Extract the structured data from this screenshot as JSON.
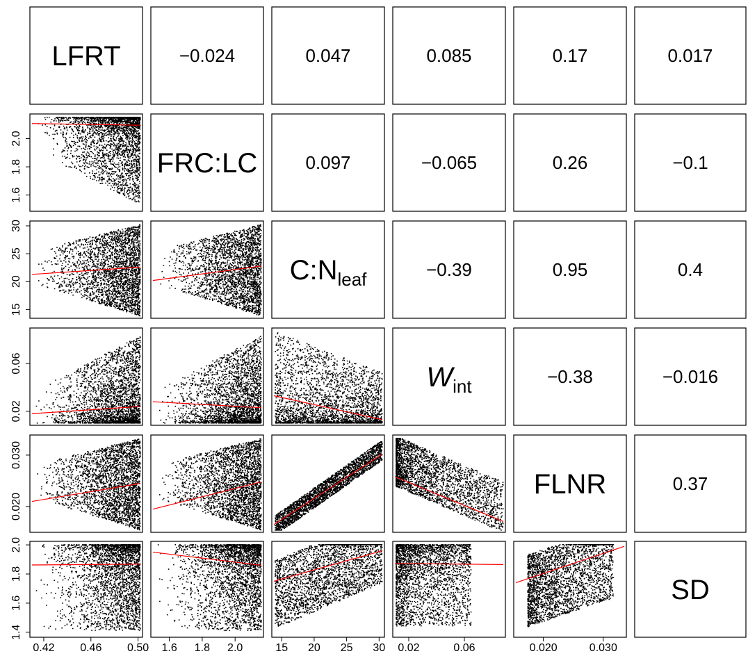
{
  "chart_data": {
    "type": "scatter",
    "variables": [
      {
        "key": "LFRT",
        "label": "LFRT",
        "label_main": "LFRT",
        "label_sub": "",
        "italic": false,
        "range": [
          0.41,
          0.502
        ],
        "ticks": [
          0.42,
          0.46,
          0.5
        ],
        "tick_labels": [
          "0.42",
          "0.46",
          "0.50"
        ]
      },
      {
        "key": "FRC:LC",
        "label": "FRC:LC",
        "label_main": "FRC:LC",
        "label_sub": "",
        "italic": false,
        "range": [
          1.5,
          2.16
        ],
        "ticks": [
          1.6,
          1.8,
          2.0
        ],
        "tick_labels": [
          "1.6",
          "1.8",
          "2.0"
        ]
      },
      {
        "key": "C:Nleaf",
        "label": "C:Nleaf",
        "label_main": "C:N",
        "label_sub": "leaf",
        "italic": false,
        "range": [
          13.8,
          30.5
        ],
        "ticks": [
          15,
          20,
          25,
          30
        ],
        "tick_labels": [
          "15",
          "20",
          "25",
          "30"
        ]
      },
      {
        "key": "Wint",
        "label": "Wint",
        "label_main": "W",
        "label_sub": "int",
        "italic": true,
        "range": [
          0.01,
          0.088
        ],
        "ticks": [
          0.02,
          0.06
        ],
        "tick_labels": [
          "0.02",
          "0.06"
        ]
      },
      {
        "key": "FLNR",
        "label": "FLNR",
        "label_main": "FLNR",
        "label_sub": "",
        "italic": false,
        "range": [
          0.0154,
          0.0335
        ],
        "ticks": [
          0.02,
          0.03
        ],
        "tick_labels": [
          "0.020",
          "0.030"
        ]
      },
      {
        "key": "SD",
        "label": "SD",
        "label_main": "SD",
        "label_sub": "",
        "italic": false,
        "range": [
          1.38,
          2.01
        ],
        "ticks": [
          1.4,
          1.6,
          1.8,
          2.0
        ],
        "tick_labels": [
          "1.4",
          "1.6",
          "1.8",
          "2.0"
        ]
      }
    ],
    "correlations": [
      {
        "row": 0,
        "col": 1,
        "value": "−0.024"
      },
      {
        "row": 0,
        "col": 2,
        "value": "0.047"
      },
      {
        "row": 0,
        "col": 3,
        "value": "0.085"
      },
      {
        "row": 0,
        "col": 4,
        "value": "0.17"
      },
      {
        "row": 0,
        "col": 5,
        "value": "0.017"
      },
      {
        "row": 1,
        "col": 2,
        "value": "0.097"
      },
      {
        "row": 1,
        "col": 3,
        "value": "−0.065"
      },
      {
        "row": 1,
        "col": 4,
        "value": "0.26"
      },
      {
        "row": 1,
        "col": 5,
        "value": "−0.1"
      },
      {
        "row": 2,
        "col": 3,
        "value": "−0.39"
      },
      {
        "row": 2,
        "col": 4,
        "value": "0.95"
      },
      {
        "row": 2,
        "col": 5,
        "value": "0.4"
      },
      {
        "row": 3,
        "col": 4,
        "value": "−0.38"
      },
      {
        "row": 3,
        "col": 5,
        "value": "−0.016"
      },
      {
        "row": 4,
        "col": 5,
        "value": "0.37"
      }
    ],
    "fit_lines": [
      {
        "row": 1,
        "col": 0,
        "x": [
          0.41,
          0.502
        ],
        "y": [
          2.107,
          2.095
        ]
      },
      {
        "row": 2,
        "col": 0,
        "x": [
          0.41,
          0.502
        ],
        "y": [
          21.3,
          22.6
        ]
      },
      {
        "row": 2,
        "col": 1,
        "x": [
          1.5,
          2.16
        ],
        "y": [
          20.2,
          22.8
        ]
      },
      {
        "row": 3,
        "col": 0,
        "x": [
          0.41,
          0.502
        ],
        "y": [
          0.018,
          0.024
        ]
      },
      {
        "row": 3,
        "col": 1,
        "x": [
          1.5,
          2.16
        ],
        "y": [
          0.028,
          0.023
        ]
      },
      {
        "row": 3,
        "col": 2,
        "x": [
          13.8,
          30.5
        ],
        "y": [
          0.033,
          0.013
        ]
      },
      {
        "row": 4,
        "col": 0,
        "x": [
          0.41,
          0.502
        ],
        "y": [
          0.021,
          0.0245
        ]
      },
      {
        "row": 4,
        "col": 1,
        "x": [
          1.5,
          2.16
        ],
        "y": [
          0.0195,
          0.0248
        ]
      },
      {
        "row": 4,
        "col": 2,
        "x": [
          13.8,
          30.5
        ],
        "y": [
          0.0165,
          0.0302
        ]
      },
      {
        "row": 4,
        "col": 3,
        "x": [
          0.01,
          0.088
        ],
        "y": [
          0.0258,
          0.0171
        ]
      },
      {
        "row": 5,
        "col": 0,
        "x": [
          0.41,
          0.502
        ],
        "y": [
          1.862,
          1.868
        ]
      },
      {
        "row": 5,
        "col": 1,
        "x": [
          1.5,
          2.16
        ],
        "y": [
          1.95,
          1.86
        ]
      },
      {
        "row": 5,
        "col": 2,
        "x": [
          13.8,
          30.5
        ],
        "y": [
          1.75,
          1.96
        ]
      },
      {
        "row": 5,
        "col": 3,
        "x": [
          0.01,
          0.088
        ],
        "y": [
          1.872,
          1.865
        ]
      },
      {
        "row": 5,
        "col": 4,
        "x": [
          0.0154,
          0.0335
        ],
        "y": [
          1.74,
          1.99
        ]
      }
    ],
    "colors": {
      "points": "#000000",
      "fit_line": "#ff0000",
      "frame": "#000000"
    }
  }
}
